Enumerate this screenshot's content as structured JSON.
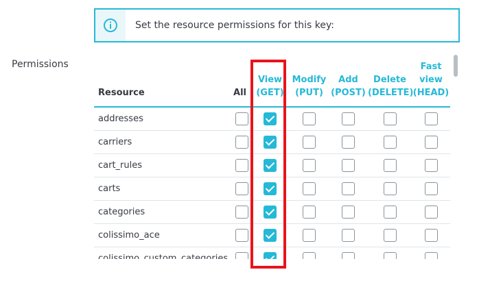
{
  "alert": {
    "text": "Set the resource permissions for this key:",
    "icon": "info-circle-icon"
  },
  "field_label": "Permissions",
  "table": {
    "headers": {
      "resource": "Resource",
      "all": "All",
      "get_1": "View",
      "get_2": "(GET)",
      "put_1": "Modify",
      "put_2": "(PUT)",
      "post_1": "Add",
      "post_2": "(POST)",
      "delete_1": "Delete",
      "delete_2": "(DELETE)",
      "head_1": "Fast",
      "head_2": "view",
      "head_3": "(HEAD)"
    },
    "rows": [
      {
        "resource": "addresses",
        "all": false,
        "get": true,
        "put": false,
        "post": false,
        "delete": false,
        "head": false
      },
      {
        "resource": "carriers",
        "all": false,
        "get": true,
        "put": false,
        "post": false,
        "delete": false,
        "head": false
      },
      {
        "resource": "cart_rules",
        "all": false,
        "get": true,
        "put": false,
        "post": false,
        "delete": false,
        "head": false
      },
      {
        "resource": "carts",
        "all": false,
        "get": true,
        "put": false,
        "post": false,
        "delete": false,
        "head": false
      },
      {
        "resource": "categories",
        "all": false,
        "get": true,
        "put": false,
        "post": false,
        "delete": false,
        "head": false
      },
      {
        "resource": "colissimo_ace",
        "all": false,
        "get": true,
        "put": false,
        "post": false,
        "delete": false,
        "head": false
      },
      {
        "resource": "colissimo_custom_categories",
        "all": false,
        "get": true,
        "put": false,
        "post": false,
        "delete": false,
        "head": false
      }
    ]
  },
  "colors": {
    "accent": "#25b9d7",
    "highlight": "#e8141c"
  }
}
